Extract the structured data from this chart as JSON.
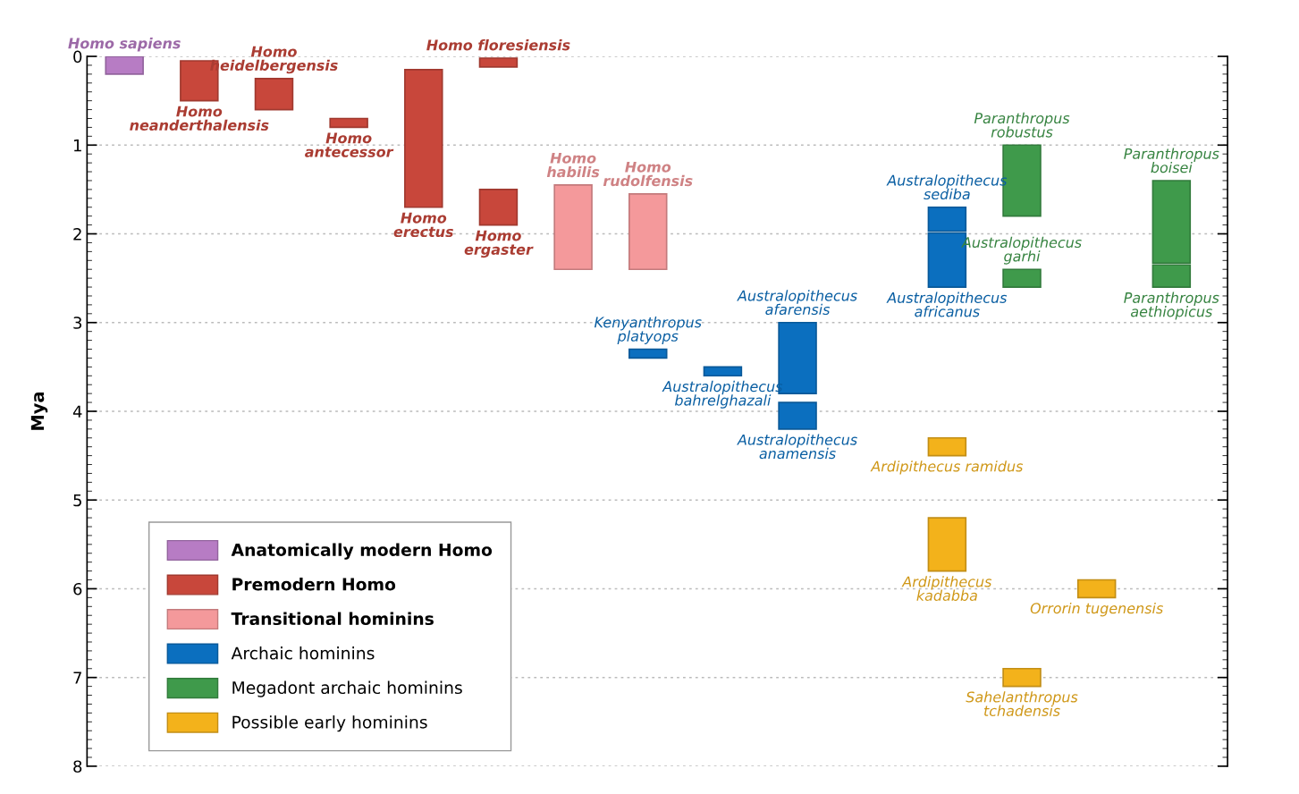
{
  "chart_data": {
    "type": "bar",
    "ylabel": "Mya",
    "categories": [
      null,
      null,
      null,
      null,
      null,
      null,
      null,
      null,
      null,
      null,
      null,
      null,
      null,
      null,
      null
    ],
    "ylim": [
      8,
      0
    ],
    "yticks": [
      0,
      1,
      2,
      3,
      4,
      5,
      6,
      7,
      8
    ],
    "grid": "y",
    "legend": "bottom left",
    "tick_labels": "y",
    "series": [
      {
        "name": "Anatomically modern Homo",
        "color": "#b77cc4",
        "base": [
          0,
          null,
          null,
          null,
          null,
          null,
          null,
          null,
          null,
          null,
          null,
          null,
          null,
          null,
          null
        ],
        "values": [
          0.2,
          null,
          null,
          null,
          null,
          null,
          null,
          null,
          null,
          null,
          null,
          null,
          null,
          null,
          null
        ],
        "value_labels": [
          "Homo sapiens",
          null,
          null,
          null,
          null,
          null,
          null,
          null,
          null,
          null,
          null,
          null,
          null,
          null,
          null
        ]
      },
      {
        "name": "Premodern Homo",
        "color": "#c8473b",
        "base": [
          null,
          0.05,
          0.25,
          0.7,
          0.15,
          1.5,
          null,
          null,
          null,
          null,
          null,
          null,
          null,
          null,
          null
        ],
        "values": [
          null,
          0.45,
          0.35,
          0.1,
          1.55,
          0.4,
          null,
          null,
          null,
          null,
          null,
          null,
          null,
          null,
          null
        ],
        "value_labels": [
          null,
          "Homo\nneanderthalensis",
          "Homo\nheidelbergensis",
          "Homo\nantecessor",
          "Homo\nerectus",
          "Homo\nergaster",
          null,
          null,
          null,
          null,
          null,
          null,
          null,
          null,
          null
        ]
      },
      {
        "color": "#c8473b",
        "base": [
          null,
          null,
          null,
          null,
          null,
          0.02,
          null,
          null,
          null,
          null,
          null,
          null,
          null,
          null,
          null
        ],
        "values": [
          null,
          null,
          null,
          null,
          null,
          0.1,
          null,
          null,
          null,
          null,
          null,
          null,
          null,
          null,
          null
        ],
        "value_labels": [
          null,
          null,
          null,
          null,
          null,
          "Homo floresiensis",
          null,
          null,
          null,
          null,
          null,
          null,
          null,
          null,
          null
        ]
      },
      {
        "name": "Transitional hominins",
        "color": "#f4999b",
        "base": [
          null,
          null,
          null,
          null,
          null,
          null,
          1.45,
          1.55,
          null,
          null,
          null,
          null,
          null,
          null,
          null
        ],
        "values": [
          null,
          null,
          null,
          null,
          null,
          null,
          0.95,
          0.85,
          null,
          null,
          null,
          null,
          null,
          null,
          null
        ],
        "value_labels": [
          null,
          null,
          null,
          null,
          null,
          null,
          "Homo\nhabilis",
          "Homo\nrudolfensis",
          null,
          null,
          null,
          null,
          null,
          null,
          null
        ]
      },
      {
        "name": "Archaic hominins",
        "color": "#0b6fbf",
        "base": [
          null,
          null,
          null,
          null,
          null,
          null,
          null,
          3.3,
          3.5,
          3.0,
          null,
          1.7,
          null,
          null,
          null
        ],
        "values": [
          null,
          null,
          null,
          null,
          null,
          null,
          null,
          0.1,
          0.1,
          0.8,
          null,
          0.27,
          null,
          null,
          null
        ],
        "value_labels": [
          null,
          null,
          null,
          null,
          null,
          null,
          null,
          "Kenyanthropus\nplatyops",
          "Australopithecus\nbahrelghazali",
          "Australopithecus\nafarensis",
          null,
          "Australopithecus\nsediba",
          null,
          null,
          null
        ]
      },
      {
        "color": "#0b6fbf",
        "base": [
          null,
          null,
          null,
          null,
          null,
          null,
          null,
          null,
          null,
          3.9,
          null,
          1.99,
          null,
          null,
          null
        ],
        "values": [
          null,
          null,
          null,
          null,
          null,
          null,
          null,
          null,
          null,
          0.3,
          null,
          0.61,
          null,
          null,
          null
        ],
        "value_labels": [
          null,
          null,
          null,
          null,
          null,
          null,
          null,
          null,
          null,
          "Australopithecus\nanamensis",
          null,
          "Australopithecus\nafricanus",
          null,
          null,
          null
        ]
      },
      {
        "name": "Megadont archaic hominins",
        "color": "#3f9a4b",
        "base": [
          null,
          null,
          null,
          null,
          null,
          null,
          null,
          null,
          null,
          null,
          null,
          null,
          1.0,
          null,
          1.4
        ],
        "values": [
          null,
          null,
          null,
          null,
          null,
          null,
          null,
          null,
          null,
          null,
          null,
          null,
          0.8,
          null,
          0.93
        ],
        "value_labels": [
          null,
          null,
          null,
          null,
          null,
          null,
          null,
          null,
          null,
          null,
          null,
          null,
          "Paranthropus\nrobustus",
          null,
          "Paranthropus\nboisei"
        ]
      },
      {
        "color": "#3f9a4b",
        "base": [
          null,
          null,
          null,
          null,
          null,
          null,
          null,
          null,
          null,
          null,
          null,
          null,
          2.4,
          null,
          2.35
        ],
        "values": [
          null,
          null,
          null,
          null,
          null,
          null,
          null,
          null,
          null,
          null,
          null,
          null,
          0.2,
          null,
          0.25
        ],
        "value_labels": [
          null,
          null,
          null,
          null,
          null,
          null,
          null,
          null,
          null,
          null,
          null,
          null,
          "Australopithecus\ngarhi",
          null,
          "Paranthropus\naethiopicus"
        ]
      },
      {
        "name": "Possible early hominins",
        "color": "#f3b21b",
        "base": [
          null,
          null,
          null,
          null,
          null,
          null,
          null,
          null,
          null,
          null,
          null,
          4.3,
          6.9,
          5.9,
          null
        ],
        "values": [
          null,
          null,
          null,
          null,
          null,
          null,
          null,
          null,
          null,
          null,
          null,
          0.2,
          0.2,
          0.2,
          null
        ],
        "value_labels": [
          null,
          null,
          null,
          null,
          null,
          null,
          null,
          null,
          null,
          null,
          null,
          "Ardipithecus ramidus",
          "Sahelanthropus\ntchadensis",
          "Orrorin tugenensis",
          null
        ]
      },
      {
        "color": "#f3b21b",
        "base": [
          null,
          null,
          null,
          null,
          null,
          null,
          null,
          null,
          null,
          null,
          null,
          5.2,
          null,
          null,
          null
        ],
        "values": [
          null,
          null,
          null,
          null,
          null,
          null,
          null,
          null,
          null,
          null,
          null,
          0.6,
          null,
          null,
          null
        ],
        "value_labels": [
          null,
          null,
          null,
          null,
          null,
          null,
          null,
          null,
          null,
          null,
          null,
          "Ardipithecus\nkadabba",
          null,
          null,
          null
        ]
      }
    ]
  }
}
